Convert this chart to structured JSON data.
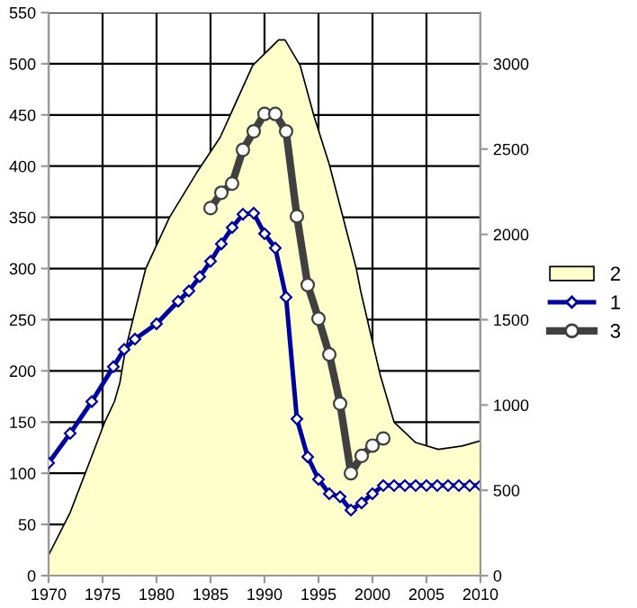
{
  "chart_data": {
    "type": "line",
    "xlim": [
      1970,
      2010
    ],
    "xticks": [
      1970,
      1975,
      1980,
      1985,
      1990,
      1995,
      2000,
      2005,
      2010
    ],
    "ylim": [
      0,
      550
    ],
    "yticks": [
      0,
      50,
      100,
      150,
      200,
      250,
      300,
      350,
      400,
      450,
      500,
      550
    ],
    "y2lim": [
      0,
      3300
    ],
    "y2ticks": [
      0,
      500,
      1000,
      1500,
      2000,
      2500,
      3000
    ],
    "grid": true,
    "legend": "right",
    "series": [
      {
        "name": "2",
        "type": "area",
        "axis": "y2",
        "color": "#ffffcc",
        "x": [
          1970,
          1972,
          1974,
          1975.2,
          1976.1,
          1976.6,
          1977.1,
          1978.2,
          1979,
          1981.2,
          1983.7,
          1985.9,
          1988.9,
          1991.3,
          1991.9,
          1993.3,
          1994.6,
          1996,
          1998.5,
          1998.9,
          2000.7,
          2002,
          2004,
          2006.1,
          2008.3,
          2010
        ],
        "values": [
          120,
          370,
          700,
          900,
          1020,
          1130,
          1320,
          1600,
          1800,
          2100,
          2360,
          2570,
          2990,
          3140,
          3140,
          2990,
          2690,
          2410,
          1800,
          1670,
          1180,
          900,
          780,
          740,
          760,
          790
        ]
      },
      {
        "name": "1",
        "axis": "y",
        "color": "#0000a0",
        "marker": "diamond",
        "x": [
          1970,
          1972,
          1974,
          1976,
          1977,
          1978,
          1980,
          1982,
          1983,
          1984,
          1985,
          1986,
          1987,
          1988,
          1989,
          1990,
          1991,
          1992,
          1993,
          1994,
          1995,
          1996,
          1997,
          1998,
          1999,
          2000,
          2001,
          2002,
          2003,
          2004,
          2005,
          2006,
          2007,
          2008,
          2009,
          2010
        ],
        "values": [
          110,
          139,
          170,
          204,
          221,
          231,
          246,
          268,
          278,
          292,
          307,
          324,
          340,
          353,
          354,
          334,
          320,
          272,
          153,
          116,
          94,
          80,
          77,
          64,
          71,
          80,
          88,
          88,
          88,
          88,
          88,
          88,
          88,
          88,
          88,
          88
        ]
      },
      {
        "name": "3",
        "axis": "y",
        "color": "#404040",
        "marker": "circle",
        "x": [
          1985,
          1986,
          1987,
          1988,
          1989,
          1990,
          1991,
          1992,
          1993,
          1994,
          1995,
          1996,
          1997,
          1998,
          1999,
          2000,
          2001
        ],
        "values": [
          359,
          374,
          383,
          416,
          434,
          451,
          451,
          434,
          351,
          284,
          251,
          216,
          168,
          100,
          117,
          127,
          134
        ]
      }
    ]
  }
}
